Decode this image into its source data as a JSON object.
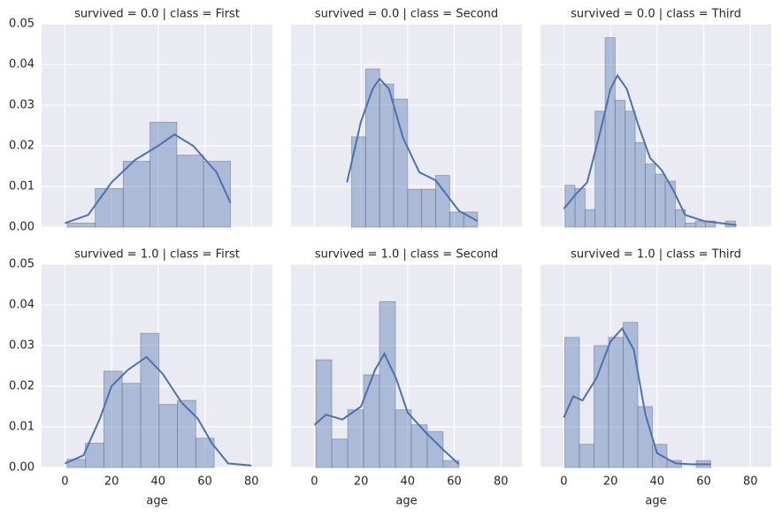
{
  "chart_data": [
    {
      "type": "histogram",
      "title": "survived = 0.0 | class = First",
      "color": "#4c72b0",
      "bins": [
        1,
        13,
        25,
        36.5,
        48,
        59.5,
        71
      ],
      "values": [
        0.001,
        0.0095,
        0.0162,
        0.0258,
        0.0177,
        0.0162
      ],
      "kde": {
        "x": [
          0,
          10,
          20,
          30,
          40,
          47,
          55,
          65,
          71
        ],
        "y": [
          0.001,
          0.003,
          0.011,
          0.0165,
          0.02,
          0.0228,
          0.02,
          0.0135,
          0.006
        ]
      },
      "xlim": [
        -10,
        89
      ],
      "ylim": [
        0,
        0.05
      ],
      "xticks": [
        0,
        20,
        40,
        60,
        80
      ],
      "yticks": [
        {
          "value": 0,
          "label": "0.00"
        },
        {
          "value": 0.01,
          "label": "0.01"
        },
        {
          "value": 0.02,
          "label": "0.02"
        },
        {
          "value": 0.03,
          "label": "0.03"
        },
        {
          "value": 0.04,
          "label": "0.04"
        },
        {
          "value": 0.05,
          "label": "0.05"
        }
      ],
      "grid": true
    },
    {
      "type": "histogram",
      "title": "survived = 0.0 | class = Second",
      "color": "#4c72b0",
      "bins": [
        16,
        22,
        28,
        34,
        40,
        46,
        52,
        58,
        64,
        70
      ],
      "values": [
        0.0222,
        0.0389,
        0.0352,
        0.0315,
        0.0093,
        0.0093,
        0.0127,
        0.0037,
        0.0037
      ],
      "kde": {
        "x": [
          14,
          20,
          25,
          28,
          32,
          38,
          45,
          52,
          58,
          62,
          70
        ],
        "y": [
          0.011,
          0.026,
          0.034,
          0.0365,
          0.034,
          0.022,
          0.0135,
          0.0115,
          0.007,
          0.004,
          0.0015
        ]
      },
      "xlim": [
        -10,
        89
      ],
      "ylim": [
        0,
        0.05
      ],
      "xticks": [
        0,
        20,
        40,
        60,
        80
      ],
      "yticks": [
        {
          "value": 0,
          "label": "0.00"
        },
        {
          "value": 0.01,
          "label": "0.01"
        },
        {
          "value": 0.02,
          "label": "0.02"
        },
        {
          "value": 0.03,
          "label": "0.03"
        },
        {
          "value": 0.04,
          "label": "0.04"
        },
        {
          "value": 0.05,
          "label": "0.05"
        }
      ],
      "grid": true
    },
    {
      "type": "histogram",
      "title": "survived = 0.0 | class = Third",
      "color": "#4c72b0",
      "bins": [
        0.5,
        4.8,
        9.1,
        13.4,
        17.7,
        22,
        26.3,
        30.6,
        34.9,
        39.2,
        43.5,
        47.8,
        52.1,
        56.4,
        60.7,
        65,
        69.3,
        73.6
      ],
      "values": [
        0.0103,
        0.0095,
        0.0043,
        0.0285,
        0.0466,
        0.0312,
        0.0285,
        0.0208,
        0.0155,
        0.013,
        0.0113,
        0.0043,
        0.001,
        0.0015,
        0.0015,
        0,
        0.0015
      ],
      "kde": {
        "x": [
          0,
          5,
          10,
          15,
          20,
          23,
          27,
          32,
          37,
          42,
          47,
          52,
          60,
          70,
          74
        ],
        "y": [
          0.0045,
          0.008,
          0.011,
          0.022,
          0.034,
          0.0373,
          0.034,
          0.025,
          0.017,
          0.014,
          0.009,
          0.003,
          0.0015,
          0.0008,
          0.0005
        ]
      },
      "xlim": [
        -10,
        89
      ],
      "ylim": [
        0,
        0.05
      ],
      "xticks": [
        0,
        20,
        40,
        60,
        80
      ],
      "yticks": [
        {
          "value": 0,
          "label": "0.00"
        },
        {
          "value": 0.01,
          "label": "0.01"
        },
        {
          "value": 0.02,
          "label": "0.02"
        },
        {
          "value": 0.03,
          "label": "0.03"
        },
        {
          "value": 0.04,
          "label": "0.04"
        },
        {
          "value": 0.05,
          "label": "0.05"
        }
      ],
      "grid": true
    },
    {
      "type": "histogram",
      "title": "survived = 1.0 | class = First",
      "color": "#4c72b0",
      "xlabel": "age",
      "bins": [
        0.92,
        8.81,
        16.69,
        24.58,
        32.46,
        40.35,
        48.23,
        56.12,
        64
      ],
      "values": [
        0.002,
        0.006,
        0.0237,
        0.0207,
        0.033,
        0.0155,
        0.0165,
        0.0072
      ],
      "kde": {
        "x": [
          0,
          8,
          15,
          20,
          27,
          35,
          42,
          50,
          57,
          63,
          70,
          80
        ],
        "y": [
          0.001,
          0.003,
          0.012,
          0.02,
          0.024,
          0.0272,
          0.023,
          0.016,
          0.012,
          0.006,
          0.001,
          0.0005
        ]
      },
      "xlim": [
        -10,
        89
      ],
      "ylim": [
        0,
        0.05
      ],
      "xticks": [
        0,
        20,
        40,
        60,
        80
      ],
      "yticks": [
        {
          "value": 0,
          "label": "0.00"
        },
        {
          "value": 0.01,
          "label": "0.01"
        },
        {
          "value": 0.02,
          "label": "0.02"
        },
        {
          "value": 0.03,
          "label": "0.03"
        },
        {
          "value": 0.04,
          "label": "0.04"
        },
        {
          "value": 0.05,
          "label": "0.05"
        }
      ],
      "grid": true
    },
    {
      "type": "histogram",
      "title": "survived = 1.0 | class = Second",
      "color": "#4c72b0",
      "xlabel": "age",
      "bins": [
        0.67,
        7.48,
        14.3,
        21.11,
        27.93,
        34.74,
        41.56,
        48.37,
        55.19,
        62
      ],
      "values": [
        0.0265,
        0.007,
        0.0142,
        0.0228,
        0.0408,
        0.0142,
        0.0105,
        0.0088,
        0.0017
      ],
      "kde": {
        "x": [
          0,
          5,
          12,
          20,
          26,
          30,
          35,
          40,
          48,
          55,
          62
        ],
        "y": [
          0.0105,
          0.013,
          0.0118,
          0.015,
          0.024,
          0.028,
          0.022,
          0.0135,
          0.0085,
          0.0045,
          0.0008
        ]
      },
      "xlim": [
        -10,
        89
      ],
      "ylim": [
        0,
        0.05
      ],
      "xticks": [
        0,
        20,
        40,
        60,
        80
      ],
      "yticks": [
        {
          "value": 0,
          "label": "0.00"
        },
        {
          "value": 0.01,
          "label": "0.01"
        },
        {
          "value": 0.02,
          "label": "0.02"
        },
        {
          "value": 0.03,
          "label": "0.03"
        },
        {
          "value": 0.04,
          "label": "0.04"
        },
        {
          "value": 0.05,
          "label": "0.05"
        }
      ],
      "grid": true
    },
    {
      "type": "histogram",
      "title": "survived = 1.0 | class = Third",
      "color": "#4c72b0",
      "xlabel": "age",
      "bins": [
        0.42,
        6.68,
        12.94,
        19.19,
        25.45,
        31.71,
        37.97,
        44.23,
        50.48,
        56.74,
        63
      ],
      "values": [
        0.032,
        0.0057,
        0.03,
        0.032,
        0.0357,
        0.015,
        0.0057,
        0.0017,
        0,
        0.0017
      ],
      "kde": {
        "x": [
          0,
          4,
          8,
          14,
          20,
          25,
          30,
          35,
          40,
          48,
          55,
          63
        ],
        "y": [
          0.0123,
          0.0175,
          0.0165,
          0.022,
          0.031,
          0.0342,
          0.029,
          0.013,
          0.0035,
          0.001,
          0.0008,
          0.0008
        ]
      },
      "xlim": [
        -10,
        89
      ],
      "ylim": [
        0,
        0.05
      ],
      "xticks": [
        0,
        20,
        40,
        60,
        80
      ],
      "yticks": [
        {
          "value": 0,
          "label": "0.00"
        },
        {
          "value": 0.01,
          "label": "0.01"
        },
        {
          "value": 0.02,
          "label": "0.02"
        },
        {
          "value": 0.03,
          "label": "0.03"
        },
        {
          "value": 0.04,
          "label": "0.04"
        },
        {
          "value": 0.05,
          "label": "0.05"
        }
      ],
      "grid": true
    }
  ]
}
